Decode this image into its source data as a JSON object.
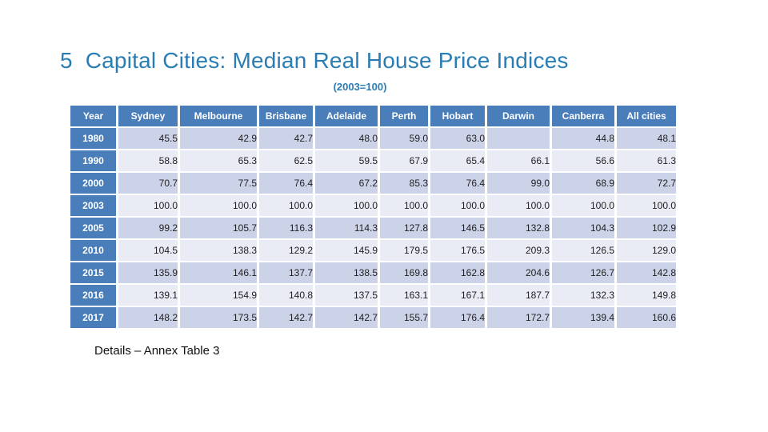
{
  "title": "5  Capital Cities: Median Real House Price Indices",
  "subtitle": "(2003=100)",
  "footer": "Details – Annex Table 3",
  "colors": {
    "title_blue": "#2a7db3",
    "header_blue": "#4a7ebb",
    "band_dark": "#ccd3e8",
    "band_light": "#e9ebf5",
    "text_dark": "#1f1f1f"
  },
  "chart_data": {
    "type": "table",
    "title": "5 Capital Cities: Median Real House Price Indices",
    "subtitle": "(2003=100)",
    "columns": [
      "Year",
      "Sydney",
      "Melbourne",
      "Brisbane",
      "Adelaide",
      "Perth",
      "Hobart",
      "Darwin",
      "Canberra",
      "All cities"
    ],
    "rows": [
      {
        "year": "1980",
        "values": [
          "45.5",
          "42.9",
          "42.7",
          "48.0",
          "59.0",
          "63.0",
          "",
          "44.8",
          "48.1"
        ]
      },
      {
        "year": "1990",
        "values": [
          "58.8",
          "65.3",
          "62.5",
          "59.5",
          "67.9",
          "65.4",
          "66.1",
          "56.6",
          "61.3"
        ]
      },
      {
        "year": "2000",
        "values": [
          "70.7",
          "77.5",
          "76.4",
          "67.2",
          "85.3",
          "76.4",
          "99.0",
          "68.9",
          "72.7"
        ]
      },
      {
        "year": "2003",
        "values": [
          "100.0",
          "100.0",
          "100.0",
          "100.0",
          "100.0",
          "100.0",
          "100.0",
          "100.0",
          "100.0"
        ]
      },
      {
        "year": "2005",
        "values": [
          "99.2",
          "105.7",
          "116.3",
          "114.3",
          "127.8",
          "146.5",
          "132.8",
          "104.3",
          "102.9"
        ]
      },
      {
        "year": "2010",
        "values": [
          "104.5",
          "138.3",
          "129.2",
          "145.9",
          "179.5",
          "176.5",
          "209.3",
          "126.5",
          "129.0"
        ]
      },
      {
        "year": "2015",
        "values": [
          "135.9",
          "146.1",
          "137.7",
          "138.5",
          "169.8",
          "162.8",
          "204.6",
          "126.7",
          "142.8"
        ]
      },
      {
        "year": "2016",
        "values": [
          "139.1",
          "154.9",
          "140.8",
          "137.5",
          "163.1",
          "167.1",
          "187.7",
          "132.3",
          "149.8"
        ]
      },
      {
        "year": "2017",
        "values": [
          "148.2",
          "173.5",
          "142.7",
          "142.7",
          "155.7",
          "176.4",
          "172.7",
          "139.4",
          "160.6"
        ]
      }
    ]
  }
}
